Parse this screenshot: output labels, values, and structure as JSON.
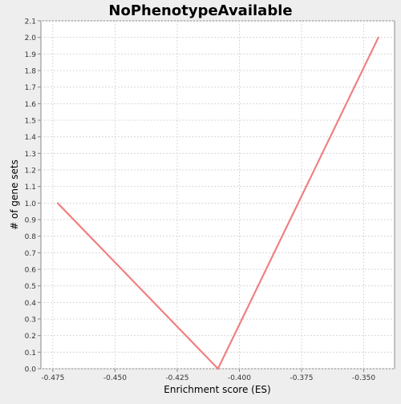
{
  "chart_data": {
    "type": "line",
    "title": "NoPhenotypeAvailable",
    "xlabel": "Enrichment score (ES)",
    "ylabel": "# of gene sets",
    "xlim": [
      -0.4798,
      -0.3376
    ],
    "ylim": [
      0.0,
      2.1
    ],
    "x_ticks": [
      -0.475,
      -0.45,
      -0.425,
      -0.4,
      -0.375,
      -0.35
    ],
    "x_tick_labels": [
      "-0.475",
      "-0.450",
      "-0.425",
      "-0.400",
      "-0.375",
      "-0.350"
    ],
    "y_ticks": [
      0.0,
      0.1,
      0.2,
      0.3,
      0.4,
      0.5,
      0.6,
      0.7,
      0.8,
      0.9,
      1.0,
      1.1,
      1.2,
      1.3,
      1.4,
      1.5,
      1.6,
      1.7,
      1.8,
      1.9,
      2.0,
      2.1
    ],
    "y_tick_labels": [
      "0.0",
      "0.1",
      "0.2",
      "0.3",
      "0.4",
      "0.5",
      "0.6",
      "0.7",
      "0.8",
      "0.9",
      "1.0",
      "1.1",
      "1.2",
      "1.3",
      "1.4",
      "1.5",
      "1.6",
      "1.7",
      "1.8",
      "1.9",
      "2.0",
      "2.1"
    ],
    "grid": true,
    "series": [
      {
        "x": [
          -0.4731,
          -0.4086,
          -0.3441
        ],
        "y": [
          1.0,
          0.0,
          2.0
        ],
        "color": "#f08080"
      }
    ]
  }
}
